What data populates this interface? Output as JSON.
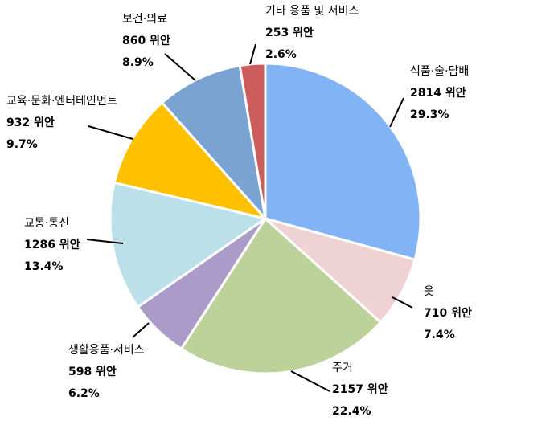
{
  "chart_data": {
    "type": "pie",
    "unit": "위안",
    "slices": [
      {
        "name": "식품·술·담배",
        "value": 2814,
        "value_label": "2814 위안",
        "percent_label": "29.3%",
        "color": "#82B4F5"
      },
      {
        "name": "옷",
        "value": 710,
        "value_label": "710 위안",
        "percent_label": "7.4%",
        "color": "#EED2D4"
      },
      {
        "name": "주거",
        "value": 2157,
        "value_label": "2157 위안",
        "percent_label": "22.4%",
        "color": "#BDD29A"
      },
      {
        "name": "생활용품·서비스",
        "value": 598,
        "value_label": "598 위안",
        "percent_label": "6.2%",
        "color": "#AB9BC8"
      },
      {
        "name": "교통·통신",
        "value": 1286,
        "value_label": "1286 위안",
        "percent_label": "13.4%",
        "color": "#BBE0EA"
      },
      {
        "name": "교육·문화·엔터테인먼트",
        "value": 932,
        "value_label": "932 위안",
        "percent_label": "9.7%",
        "color": "#FFC000"
      },
      {
        "name": "보건·의료",
        "value": 860,
        "value_label": "860 위안",
        "percent_label": "8.9%",
        "color": "#7BA3D2"
      },
      {
        "name": "기타 용품 및 서비스",
        "value": 253,
        "value_label": "253 위안",
        "percent_label": "2.6%",
        "color": "#CD5C5C"
      }
    ],
    "start_angle_deg": 0,
    "direction": "clockwise",
    "legend": "none",
    "labels": "outside-with-leader-lines"
  }
}
